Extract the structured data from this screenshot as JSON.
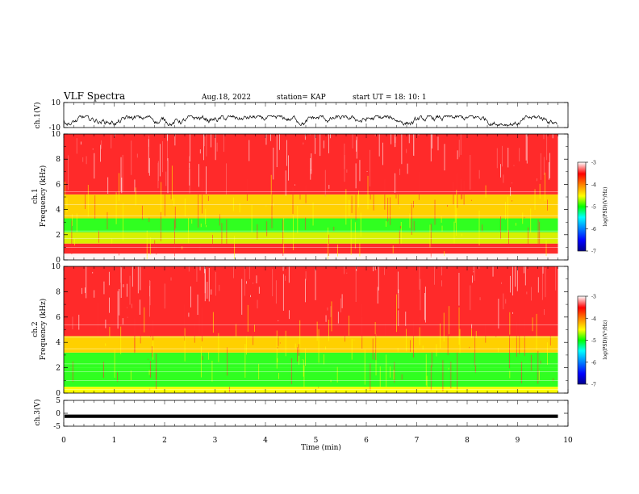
{
  "header": {
    "title": "VLF Spectra",
    "date": "Aug.18, 2022",
    "station": "station= KAP",
    "start": "start  UT  =   18: 10: 1"
  },
  "chart_data": [
    {
      "type": "line",
      "panel": "ch1-waveform",
      "ylabel": "ch.1(V)",
      "ylim": [
        -10,
        10
      ],
      "yticks": [
        "10",
        "-10"
      ],
      "xlim": [
        0,
        10
      ],
      "x_extent": 9.8,
      "style": "dense noisy black trace oscillating roughly between -8 and -1 V"
    },
    {
      "type": "heatmap",
      "panel": "ch1-spectrogram",
      "ylabel": "ch.1\nFrequency (kHz)",
      "ylim": [
        0,
        10
      ],
      "yticks": [
        "0",
        "2",
        "4",
        "6",
        "8",
        "10"
      ],
      "xlim": [
        0,
        10
      ],
      "x_extent": 9.8,
      "bands_kHz": [
        {
          "from": 0,
          "to": 0.5,
          "level": "white"
        },
        {
          "from": 0.5,
          "to": 1.3,
          "level": "red"
        },
        {
          "from": 1.3,
          "to": 2.2,
          "level": "yellow-green"
        },
        {
          "from": 2.2,
          "to": 3.3,
          "level": "green"
        },
        {
          "from": 3.3,
          "to": 5.2,
          "level": "yellow-orange"
        },
        {
          "from": 5.2,
          "to": 10,
          "level": "red"
        }
      ],
      "colorbar": {
        "label": "log(PSD)(V²/Hz)",
        "min": -7,
        "max": -3,
        "ticks": [
          "-3",
          "-4",
          "-5",
          "-6",
          "-7"
        ]
      }
    },
    {
      "type": "heatmap",
      "panel": "ch2-spectrogram",
      "ylabel": "ch.2\nFrequency (kHz)",
      "ylim": [
        0,
        10
      ],
      "yticks": [
        "0",
        "2",
        "4",
        "6",
        "8",
        "10"
      ],
      "xlim": [
        0,
        10
      ],
      "x_extent": 9.8,
      "bands_kHz": [
        {
          "from": 0,
          "to": 0.5,
          "level": "yellow"
        },
        {
          "from": 0.5,
          "to": 2.0,
          "level": "green"
        },
        {
          "from": 2.0,
          "to": 3.2,
          "level": "green"
        },
        {
          "from": 3.2,
          "to": 4.5,
          "level": "yellow-orange"
        },
        {
          "from": 4.5,
          "to": 10,
          "level": "red"
        }
      ],
      "colorbar": {
        "label": "log(PSD)(V²/Hz)",
        "min": -7,
        "max": -3,
        "ticks": [
          "-3",
          "-4",
          "-5",
          "-6",
          "-7"
        ]
      }
    },
    {
      "type": "line",
      "panel": "ch3-waveform",
      "ylabel": "ch.3(V)",
      "ylim": [
        -5,
        5
      ],
      "yticks": [
        "5",
        "0",
        "-5"
      ],
      "xlim": [
        0,
        10
      ],
      "x_extent": 9.8,
      "style": "thick flat band near -1 V"
    }
  ],
  "xaxis": {
    "label": "Time (min)",
    "ticks": [
      "0",
      "1",
      "2",
      "3",
      "4",
      "5",
      "6",
      "7",
      "8",
      "9",
      "10"
    ]
  },
  "colors": {
    "colormap": [
      "#00008b",
      "#0000ff",
      "#00a0ff",
      "#00ffff",
      "#00ff00",
      "#a0ff00",
      "#ffff00",
      "#ff8000",
      "#ff0000",
      "#ffffff"
    ]
  }
}
